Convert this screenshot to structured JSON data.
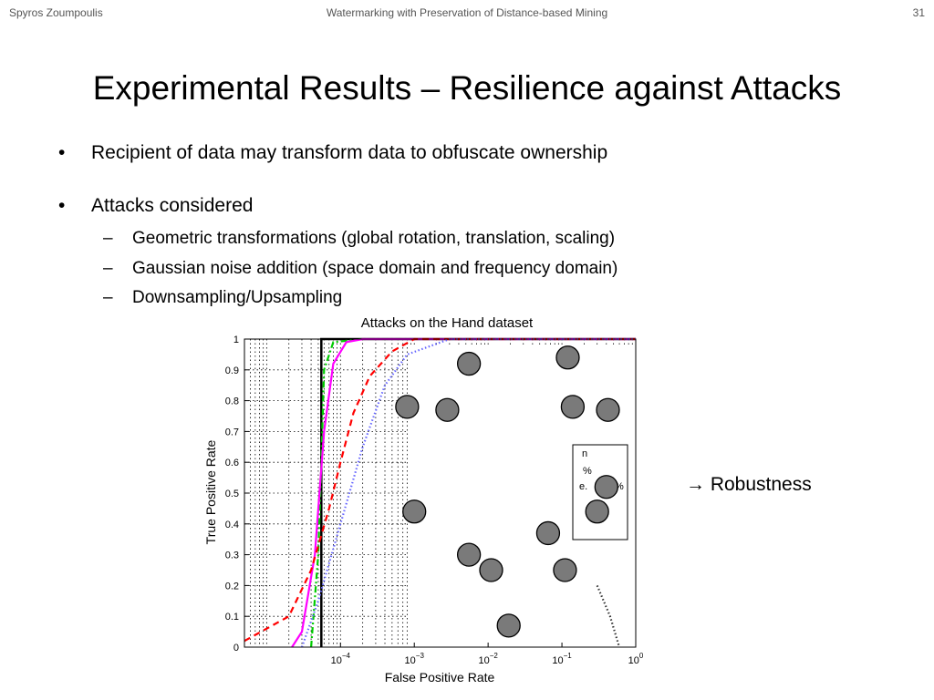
{
  "header": {
    "author": "Spyros Zoumpoulis",
    "talk_title": "Watermarking with Preservation of Distance-based Mining",
    "slide_number": "31"
  },
  "title": "Experimental Results – Resilience against Attacks",
  "bullets": [
    {
      "marker": "•",
      "text": "Recipient of data may transform data to obfuscate ownership"
    },
    {
      "marker": "•",
      "text": "Attacks considered"
    }
  ],
  "sub_bullets": [
    {
      "marker": "–",
      "text": "Geometric transformations (global rotation, translation, scaling)"
    },
    {
      "marker": "–",
      "text": "Gaussian noise addition (space domain and frequency domain)"
    },
    {
      "marker": "–",
      "text": "Downsampling/Upsampling"
    }
  ],
  "annotation": "→ Robustness",
  "chart_data": {
    "type": "line",
    "title": "Attacks on the Hand dataset",
    "xlabel": "False Positive Rate",
    "ylabel": "True Positive Rate",
    "xscale": "log",
    "xlim": [
      5e-06,
      1
    ],
    "ylim": [
      0,
      1
    ],
    "xticks": [
      {
        "base": "10",
        "exp": "−4",
        "value": 0.0001
      },
      {
        "base": "10",
        "exp": "−3",
        "value": 0.001
      },
      {
        "base": "10",
        "exp": "−2",
        "value": 0.01
      },
      {
        "base": "10",
        "exp": "−1",
        "value": 0.1
      },
      {
        "base": "10",
        "exp": "0",
        "value": 1
      }
    ],
    "yticks": [
      "0",
      "0.1",
      "0.2",
      "0.3",
      "0.4",
      "0.5",
      "0.6",
      "0.7",
      "0.8",
      "0.9",
      "1"
    ],
    "grid": true,
    "legend_fragments": [
      "n",
      "%",
      "e.",
      "%"
    ],
    "series": [
      {
        "color": "#000000",
        "style": "solid",
        "x": [
          5.5e-05,
          5.5e-05,
          1
        ],
        "y": [
          0,
          1,
          1
        ]
      },
      {
        "color": "#00cc00",
        "style": "dash-dot",
        "x": [
          4e-05,
          5e-05,
          5.5e-05,
          6e-05,
          8e-05,
          0.0002,
          1
        ],
        "y": [
          0,
          0.3,
          0.6,
          0.9,
          0.99,
          1,
          1
        ]
      },
      {
        "color": "#ff00ff",
        "style": "solid",
        "x": [
          2.2e-05,
          3e-05,
          4.5e-05,
          6e-05,
          8e-05,
          0.00012,
          0.0002,
          0.0005,
          1
        ],
        "y": [
          0,
          0.05,
          0.3,
          0.7,
          0.92,
          0.99,
          1,
          1,
          1
        ]
      },
      {
        "color": "#ff0000",
        "style": "dashed",
        "x": [
          5e-06,
          2e-05,
          4e-05,
          7e-05,
          0.0001,
          0.00015,
          0.00025,
          0.0005,
          0.001,
          1
        ],
        "y": [
          0.02,
          0.1,
          0.25,
          0.45,
          0.6,
          0.76,
          0.88,
          0.96,
          1,
          1
        ]
      },
      {
        "color": "#6666ff",
        "style": "dotted",
        "x": [
          3e-05,
          5e-05,
          0.0001,
          0.0002,
          0.0004,
          0.0008,
          0.003,
          1
        ],
        "y": [
          0,
          0.15,
          0.4,
          0.65,
          0.85,
          0.95,
          1,
          1
        ]
      },
      {
        "color": "#333333",
        "style": "dotted",
        "x": [
          0.3,
          0.45,
          0.6
        ],
        "y": [
          0.2,
          0.1,
          0.0
        ]
      }
    ],
    "markers": [
      {
        "x": 0.0008,
        "y": 0.78
      },
      {
        "x": 0.0028,
        "y": 0.77
      },
      {
        "x": 0.0055,
        "y": 0.92
      },
      {
        "x": 0.12,
        "y": 0.94
      },
      {
        "x": 0.14,
        "y": 0.78
      },
      {
        "x": 0.42,
        "y": 0.77
      },
      {
        "x": 0.001,
        "y": 0.44
      },
      {
        "x": 0.0055,
        "y": 0.3
      },
      {
        "x": 0.011,
        "y": 0.25
      },
      {
        "x": 0.065,
        "y": 0.37
      },
      {
        "x": 0.11,
        "y": 0.25
      },
      {
        "x": 0.3,
        "y": 0.44
      },
      {
        "x": 0.4,
        "y": 0.52
      },
      {
        "x": 0.019,
        "y": 0.07
      }
    ],
    "marker_color": "#7a7a7a"
  }
}
